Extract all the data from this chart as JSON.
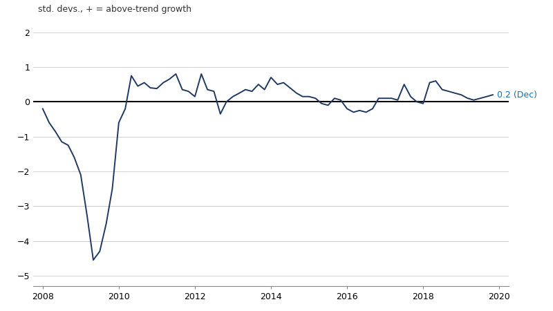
{
  "title_label": "std. devs., + = above-trend growth",
  "title_color": "#333333",
  "line_color": "#1f3864",
  "zero_line_color": "#000000",
  "grid_color": "#d0d0d0",
  "annotation_text": "0.2 (Dec)",
  "annotation_color": "#1a6faf",
  "xlim": [
    2007.75,
    2020.25
  ],
  "ylim": [
    -5.3,
    2.3
  ],
  "yticks": [
    -5,
    -4,
    -3,
    -2,
    -1,
    0,
    1,
    2
  ],
  "xticks": [
    2008,
    2010,
    2012,
    2014,
    2016,
    2018,
    2020
  ],
  "xtick_labels": [
    "2008",
    "2010",
    "2012",
    "2014",
    "2016",
    "2018",
    "2020"
  ],
  "data": [
    [
      2008.0,
      -0.2
    ],
    [
      2008.17,
      -0.6
    ],
    [
      2008.33,
      -0.85
    ],
    [
      2008.5,
      -1.15
    ],
    [
      2008.67,
      -1.25
    ],
    [
      2008.83,
      -1.6
    ],
    [
      2009.0,
      -2.1
    ],
    [
      2009.17,
      -3.3
    ],
    [
      2009.33,
      -4.55
    ],
    [
      2009.5,
      -4.3
    ],
    [
      2009.67,
      -3.5
    ],
    [
      2009.83,
      -2.5
    ],
    [
      2010.0,
      -0.6
    ],
    [
      2010.17,
      -0.2
    ],
    [
      2010.33,
      0.75
    ],
    [
      2010.5,
      0.45
    ],
    [
      2010.67,
      0.55
    ],
    [
      2010.83,
      0.4
    ],
    [
      2011.0,
      0.38
    ],
    [
      2011.17,
      0.55
    ],
    [
      2011.33,
      0.65
    ],
    [
      2011.5,
      0.8
    ],
    [
      2011.67,
      0.35
    ],
    [
      2011.83,
      0.3
    ],
    [
      2012.0,
      0.15
    ],
    [
      2012.17,
      0.8
    ],
    [
      2012.33,
      0.35
    ],
    [
      2012.5,
      0.3
    ],
    [
      2012.67,
      -0.35
    ],
    [
      2012.83,
      0.0
    ],
    [
      2013.0,
      0.15
    ],
    [
      2013.17,
      0.25
    ],
    [
      2013.33,
      0.35
    ],
    [
      2013.5,
      0.3
    ],
    [
      2013.67,
      0.5
    ],
    [
      2013.83,
      0.35
    ],
    [
      2014.0,
      0.7
    ],
    [
      2014.17,
      0.5
    ],
    [
      2014.33,
      0.55
    ],
    [
      2014.5,
      0.4
    ],
    [
      2014.67,
      0.25
    ],
    [
      2014.83,
      0.15
    ],
    [
      2015.0,
      0.15
    ],
    [
      2015.17,
      0.1
    ],
    [
      2015.33,
      -0.05
    ],
    [
      2015.5,
      -0.1
    ],
    [
      2015.67,
      0.1
    ],
    [
      2015.83,
      0.05
    ],
    [
      2016.0,
      -0.2
    ],
    [
      2016.17,
      -0.3
    ],
    [
      2016.33,
      -0.25
    ],
    [
      2016.5,
      -0.3
    ],
    [
      2016.67,
      -0.2
    ],
    [
      2016.83,
      0.1
    ],
    [
      2017.0,
      0.1
    ],
    [
      2017.17,
      0.1
    ],
    [
      2017.33,
      0.05
    ],
    [
      2017.5,
      0.5
    ],
    [
      2017.67,
      0.15
    ],
    [
      2017.83,
      0.0
    ],
    [
      2018.0,
      -0.05
    ],
    [
      2018.17,
      0.55
    ],
    [
      2018.33,
      0.6
    ],
    [
      2018.5,
      0.35
    ],
    [
      2018.67,
      0.3
    ],
    [
      2018.83,
      0.25
    ],
    [
      2019.0,
      0.2
    ],
    [
      2019.17,
      0.1
    ],
    [
      2019.33,
      0.05
    ],
    [
      2019.5,
      0.1
    ],
    [
      2019.67,
      0.15
    ],
    [
      2019.83,
      0.2
    ]
  ]
}
